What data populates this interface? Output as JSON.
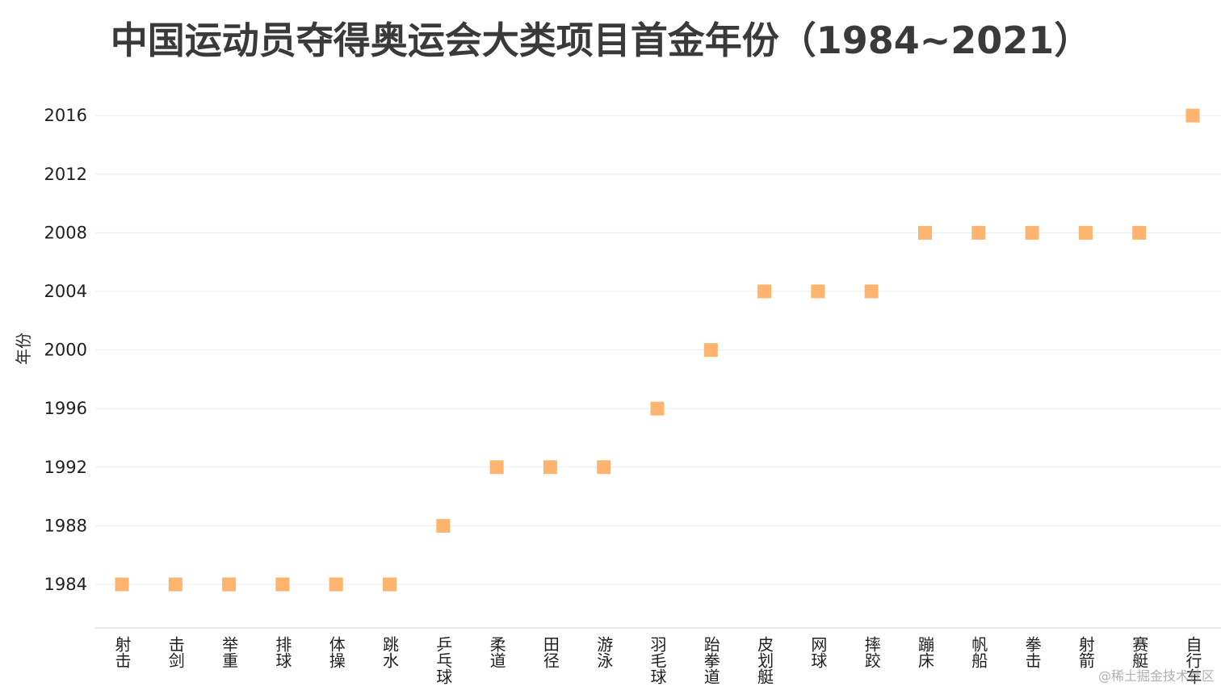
{
  "chart_data": {
    "type": "scatter",
    "title": "中国运动员夺得奥运会大类项目首金年份（1984~2021）",
    "xlabel": "",
    "ylabel": "年份",
    "categories": [
      "射击",
      "击剑",
      "举重",
      "排球",
      "体操",
      "跳水",
      "乒乓球",
      "柔道",
      "田径",
      "游泳",
      "羽毛球",
      "跆拳道",
      "皮划艇",
      "网球",
      "摔跤",
      "蹦床",
      "帆船",
      "拳击",
      "射箭",
      "赛艇",
      "自行车"
    ],
    "values": [
      1984,
      1984,
      1984,
      1984,
      1984,
      1984,
      1988,
      1992,
      1992,
      1992,
      1996,
      2000,
      2004,
      2004,
      2004,
      2008,
      2008,
      2008,
      2008,
      2008,
      2016
    ],
    "yticks": [
      1984,
      1988,
      1992,
      1996,
      2000,
      2004,
      2008,
      2012,
      2016
    ],
    "ylim": [
      1981,
      2018.5
    ],
    "grid": true,
    "marker": "square",
    "marker_color": "#fdb46e"
  },
  "watermark": "@稀土掘金技术社区"
}
